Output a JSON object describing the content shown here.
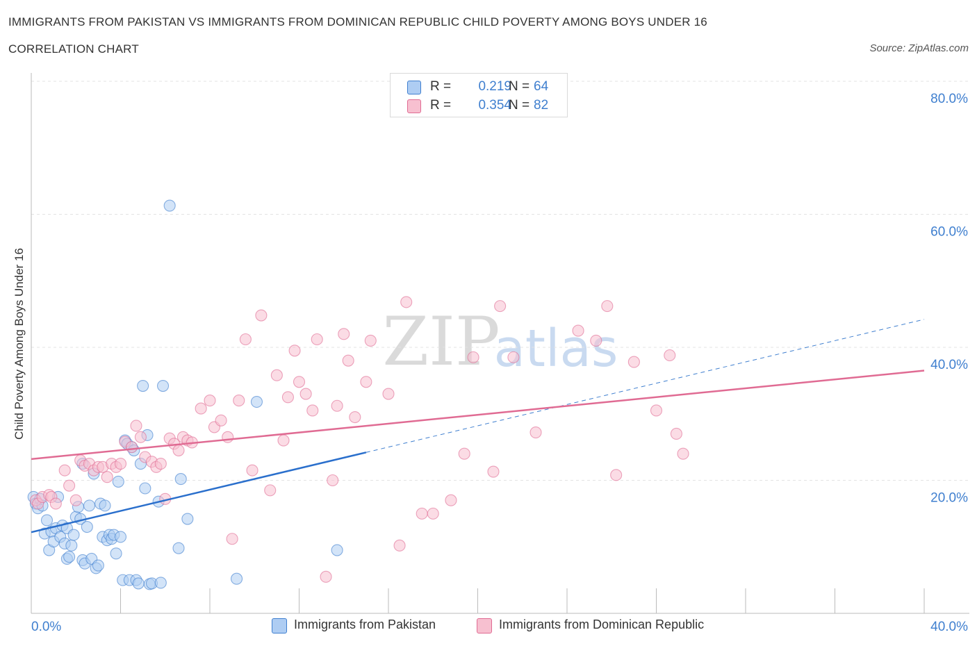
{
  "header": {
    "title": "IMMIGRANTS FROM PAKISTAN VS IMMIGRANTS FROM DOMINICAN REPUBLIC CHILD POVERTY AMONG BOYS UNDER 16",
    "subtitle": "CORRELATION CHART",
    "source": "Source: ZipAtlas.com"
  },
  "watermark": {
    "zip": "ZIP",
    "atlas": "atlas"
  },
  "legend_top": [
    {
      "r_label": "R =",
      "r_value": "0.219",
      "n_label": "N =",
      "n_value": "64",
      "color": "#aecdf3"
    },
    {
      "r_label": "R =",
      "r_value": "0.354",
      "n_label": "N =",
      "n_value": "82",
      "color": "#f7c0d0"
    }
  ],
  "chart_data": {
    "type": "scatter",
    "title": "IMMIGRANTS FROM PAKISTAN VS IMMIGRANTS FROM DOMINICAN REPUBLIC CHILD POVERTY AMONG BOYS UNDER 16",
    "subtitle": "CORRELATION CHART",
    "xlabel": "",
    "ylabel": "Child Poverty Among Boys Under 16",
    "xlim": [
      0,
      40
    ],
    "ylim": [
      0,
      80
    ],
    "x_tick_labels": [
      "0.0%",
      "40.0%"
    ],
    "y_ticks": [
      20,
      40,
      60,
      80
    ],
    "y_tick_labels": [
      "20.0%",
      "40.0%",
      "60.0%",
      "80.0%"
    ],
    "grid": true,
    "legend_position": "bottom",
    "series": [
      {
        "name": "Immigrants from Pakistan",
        "color": "#3f7fcf",
        "fill": "#aecdf3",
        "R": 0.219,
        "N": 64,
        "trend": {
          "x0": 0,
          "y0": 12.2,
          "x1": 15,
          "y1": 24.2,
          "dashed_to_x": 40,
          "dashed_to_y": 44.2
        },
        "points": [
          [
            0.1,
            17.5
          ],
          [
            0.2,
            16.5
          ],
          [
            0.3,
            15.8
          ],
          [
            0.4,
            17.2
          ],
          [
            0.5,
            16.2
          ],
          [
            0.6,
            12.0
          ],
          [
            0.7,
            14.0
          ],
          [
            0.8,
            9.5
          ],
          [
            0.9,
            12.3
          ],
          [
            1.0,
            10.8
          ],
          [
            1.1,
            12.8
          ],
          [
            1.2,
            17.5
          ],
          [
            1.3,
            11.5
          ],
          [
            1.4,
            13.2
          ],
          [
            1.5,
            10.5
          ],
          [
            1.6,
            12.8
          ],
          [
            1.6,
            8.2
          ],
          [
            1.7,
            8.5
          ],
          [
            1.8,
            10.2
          ],
          [
            1.9,
            11.8
          ],
          [
            2.0,
            14.5
          ],
          [
            2.1,
            16.0
          ],
          [
            2.2,
            14.2
          ],
          [
            2.3,
            22.5
          ],
          [
            2.3,
            8.0
          ],
          [
            2.4,
            7.5
          ],
          [
            2.5,
            13.0
          ],
          [
            2.6,
            16.2
          ],
          [
            2.7,
            8.2
          ],
          [
            2.8,
            21.0
          ],
          [
            2.9,
            6.8
          ],
          [
            3.0,
            7.2
          ],
          [
            3.1,
            16.5
          ],
          [
            3.2,
            11.5
          ],
          [
            3.3,
            16.2
          ],
          [
            3.4,
            11.0
          ],
          [
            3.5,
            11.8
          ],
          [
            3.6,
            11.2
          ],
          [
            3.7,
            11.8
          ],
          [
            3.8,
            9.0
          ],
          [
            3.9,
            19.8
          ],
          [
            4.0,
            11.5
          ],
          [
            4.1,
            5.0
          ],
          [
            4.2,
            26.0
          ],
          [
            4.3,
            25.5
          ],
          [
            4.4,
            5.0
          ],
          [
            4.5,
            25.0
          ],
          [
            4.6,
            24.5
          ],
          [
            4.7,
            5.0
          ],
          [
            4.8,
            4.5
          ],
          [
            4.9,
            22.5
          ],
          [
            5.0,
            34.2
          ],
          [
            5.1,
            18.8
          ],
          [
            5.2,
            26.8
          ],
          [
            5.3,
            4.4
          ],
          [
            5.4,
            4.5
          ],
          [
            5.7,
            16.8
          ],
          [
            5.8,
            4.6
          ],
          [
            5.9,
            34.2
          ],
          [
            6.2,
            61.3
          ],
          [
            6.7,
            20.2
          ],
          [
            7.0,
            14.2
          ],
          [
            9.2,
            5.2
          ],
          [
            10.1,
            31.8
          ],
          [
            13.7,
            9.5
          ],
          [
            6.6,
            9.8
          ]
        ]
      },
      {
        "name": "Immigrants from Dominican Republic",
        "color": "#e06b93",
        "fill": "#f7c0d0",
        "R": 0.354,
        "N": 82,
        "trend": {
          "x0": 0,
          "y0": 23.2,
          "x1": 40,
          "y1": 36.5
        },
        "points": [
          [
            0.2,
            17.0
          ],
          [
            0.3,
            16.5
          ],
          [
            0.5,
            17.5
          ],
          [
            0.8,
            17.8
          ],
          [
            0.9,
            17.5
          ],
          [
            1.1,
            16.5
          ],
          [
            1.5,
            21.5
          ],
          [
            1.7,
            19.2
          ],
          [
            2.0,
            17.0
          ],
          [
            2.2,
            23.0
          ],
          [
            2.4,
            22.2
          ],
          [
            2.6,
            22.5
          ],
          [
            2.8,
            21.5
          ],
          [
            3.0,
            22.0
          ],
          [
            3.2,
            22.0
          ],
          [
            3.4,
            20.5
          ],
          [
            3.6,
            22.5
          ],
          [
            3.8,
            22.0
          ],
          [
            4.0,
            22.5
          ],
          [
            4.2,
            25.8
          ],
          [
            4.5,
            25.0
          ],
          [
            4.7,
            28.2
          ],
          [
            4.9,
            26.5
          ],
          [
            5.1,
            23.5
          ],
          [
            5.4,
            22.8
          ],
          [
            5.6,
            22.0
          ],
          [
            5.8,
            22.5
          ],
          [
            6.0,
            17.2
          ],
          [
            6.2,
            26.3
          ],
          [
            6.4,
            25.5
          ],
          [
            6.6,
            24.5
          ],
          [
            6.8,
            26.5
          ],
          [
            7.0,
            26.0
          ],
          [
            7.2,
            25.7
          ],
          [
            7.6,
            30.8
          ],
          [
            8.0,
            32.0
          ],
          [
            8.2,
            28.0
          ],
          [
            8.5,
            29.0
          ],
          [
            8.8,
            26.5
          ],
          [
            9.0,
            11.2
          ],
          [
            9.3,
            32.0
          ],
          [
            9.6,
            41.2
          ],
          [
            9.9,
            21.5
          ],
          [
            10.3,
            44.8
          ],
          [
            10.7,
            18.5
          ],
          [
            11.0,
            35.8
          ],
          [
            11.3,
            26.0
          ],
          [
            11.5,
            32.5
          ],
          [
            11.8,
            39.5
          ],
          [
            12.0,
            34.8
          ],
          [
            12.3,
            33.0
          ],
          [
            12.6,
            30.5
          ],
          [
            12.8,
            41.2
          ],
          [
            13.2,
            5.5
          ],
          [
            13.5,
            20.0
          ],
          [
            13.7,
            31.2
          ],
          [
            14.0,
            42.0
          ],
          [
            14.2,
            38.0
          ],
          [
            14.5,
            29.5
          ],
          [
            15.0,
            34.8
          ],
          [
            15.2,
            41.0
          ],
          [
            16.0,
            33.0
          ],
          [
            16.5,
            10.2
          ],
          [
            16.8,
            46.8
          ],
          [
            17.5,
            15.0
          ],
          [
            18.0,
            15.0
          ],
          [
            18.8,
            17.0
          ],
          [
            19.4,
            24.0
          ],
          [
            19.8,
            38.5
          ],
          [
            20.7,
            21.3
          ],
          [
            21.0,
            46.2
          ],
          [
            21.6,
            38.5
          ],
          [
            22.6,
            27.2
          ],
          [
            24.5,
            42.5
          ],
          [
            25.3,
            41.0
          ],
          [
            25.8,
            46.2
          ],
          [
            26.2,
            20.8
          ],
          [
            27.0,
            37.8
          ],
          [
            28.0,
            30.5
          ],
          [
            28.6,
            38.8
          ],
          [
            28.9,
            27.0
          ],
          [
            29.2,
            24.0
          ]
        ]
      }
    ]
  },
  "legend_bottom": [
    {
      "label": "Immigrants from Pakistan",
      "color": "#aecdf3"
    },
    {
      "label": "Immigrants from Dominican Republic",
      "color": "#f7c0d0"
    }
  ]
}
